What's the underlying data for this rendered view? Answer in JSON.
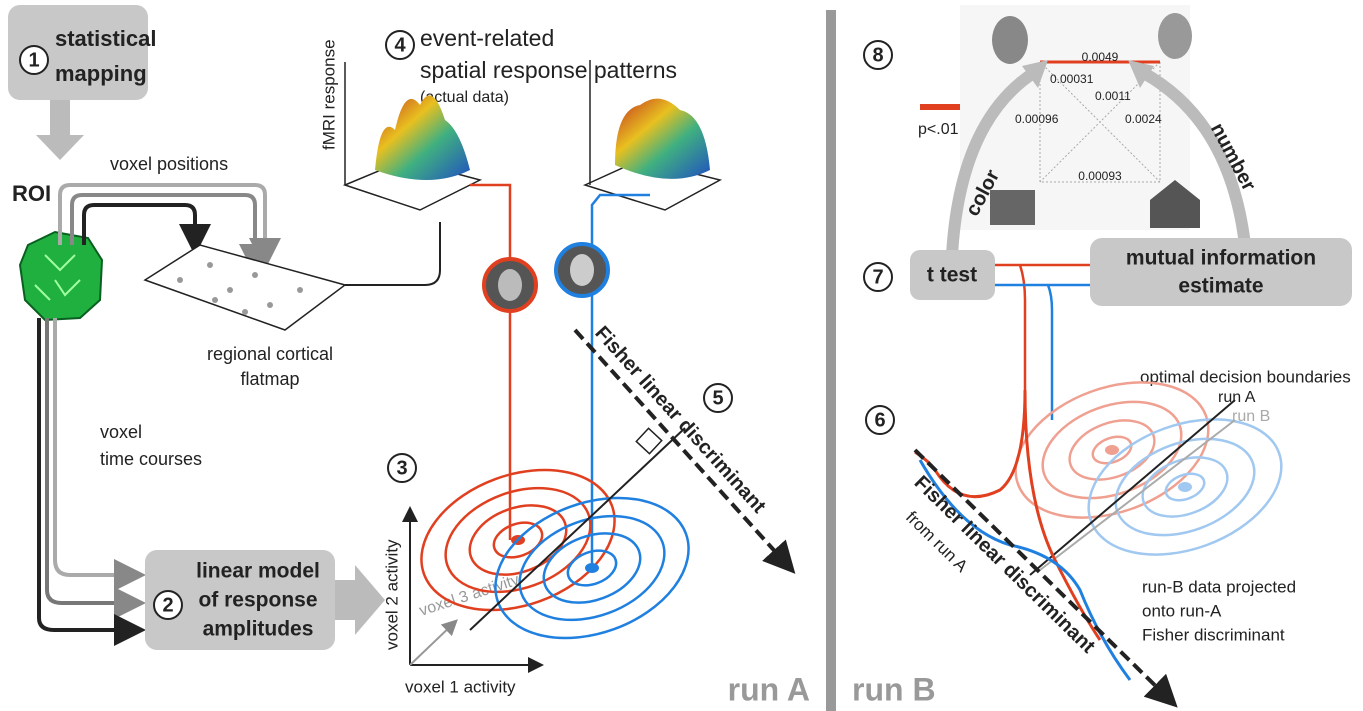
{
  "steps": {
    "s1": {
      "number": "1",
      "lines": [
        "statistical",
        "mapping"
      ]
    },
    "s2": {
      "number": "2",
      "lines": [
        "linear model",
        "of response",
        "amplitudes"
      ]
    },
    "s3": {
      "number": "3"
    },
    "s4": {
      "number": "4",
      "lines": [
        "event-related",
        "spatial response patterns",
        "(actual data)"
      ]
    },
    "s5": {
      "number": "5"
    },
    "s6": {
      "number": "6"
    },
    "s7": {
      "number": "7"
    },
    "s8": {
      "number": "8"
    }
  },
  "labels": {
    "roi": "ROI",
    "voxel_positions": "voxel positions",
    "flatmap": [
      "regional cortical",
      "flatmap"
    ],
    "time_courses": [
      "voxel",
      "time courses"
    ],
    "fmri_response": "fMRI response",
    "voxel1": "voxel 1 activity",
    "voxel2": "voxel 2 activity",
    "voxel3": "voxel 3 activity",
    "fisher_a": "Fisher linear discriminant",
    "fisher_b": "Fisher linear discriminant",
    "from_run_a": "from run A",
    "run_a": "run A",
    "run_b": "run B",
    "optimal": "optimal decision boundaries",
    "boundary_a": "run A",
    "boundary_b": "run B",
    "projected": [
      "run-B data projected",
      "onto run-A",
      "Fisher discriminant"
    ],
    "t_test": "t test",
    "mutual": [
      "mutual information",
      "estimate"
    ],
    "color": "color",
    "number": "number",
    "p": "p<.01"
  },
  "matrix": {
    "top": "0.0049",
    "a": "0.00031",
    "b": "0.0011",
    "c": "0.00096",
    "d": "0.0024",
    "bottom": "0.00093"
  }
}
